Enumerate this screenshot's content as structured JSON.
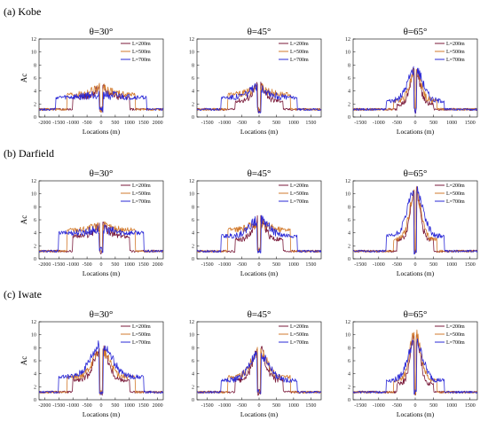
{
  "colors": {
    "L200": "#7a1a3a",
    "L500": "#d27a2c",
    "L700": "#2a28d6"
  },
  "sections": [
    {
      "label": "(a) Kobe"
    },
    {
      "label": "(b) Darfield"
    },
    {
      "label": "(c) Iwate"
    }
  ],
  "ylabel": "Ac",
  "xlabel": "Locations (m)",
  "chart_data": [
    {
      "type": "line",
      "section": "(a) Kobe",
      "title": "θ=30°",
      "xlim": [
        -2200,
        2200
      ],
      "ylim": [
        0,
        12
      ],
      "xticks": [
        -2000,
        -1500,
        -1000,
        -500,
        0,
        500,
        1000,
        1500,
        2000
      ],
      "yticks": [
        0,
        2,
        4,
        6,
        8,
        10,
        12
      ],
      "series": [
        {
          "name": "L=200m",
          "width": 1000,
          "base": 3.0,
          "peak": 4.5
        },
        {
          "name": "L=500m",
          "width": 1200,
          "base": 3.5,
          "peak": 4.5
        },
        {
          "name": "L=700m",
          "width": 1600,
          "base": 3.0,
          "peak": 3.5
        }
      ]
    },
    {
      "type": "line",
      "section": "(a) Kobe",
      "title": "θ=45°",
      "xlim": [
        -1800,
        1800
      ],
      "ylim": [
        0,
        12
      ],
      "xticks": [
        -1500,
        -1000,
        -500,
        0,
        500,
        1000,
        1500
      ],
      "yticks": [
        0,
        2,
        4,
        6,
        8,
        10,
        12
      ],
      "series": [
        {
          "name": "L=200m",
          "width": 700,
          "base": 2.5,
          "peak": 5.0
        },
        {
          "name": "L=500m",
          "width": 900,
          "base": 3.5,
          "peak": 4.5
        },
        {
          "name": "L=700m",
          "width": 1100,
          "base": 3.0,
          "peak": 4.5
        }
      ]
    },
    {
      "type": "line",
      "section": "(a) Kobe",
      "title": "θ=65°",
      "xlim": [
        -1700,
        1700
      ],
      "ylim": [
        0,
        12
      ],
      "xticks": [
        -1500,
        -1000,
        -500,
        0,
        500,
        1000,
        1500
      ],
      "yticks": [
        0,
        2,
        4,
        6,
        8,
        10,
        12
      ],
      "series": [
        {
          "name": "L=200m",
          "width": 500,
          "base": 2.0,
          "peak": 7.5
        },
        {
          "name": "L=500m",
          "width": 600,
          "base": 2.5,
          "peak": 7.0
        },
        {
          "name": "L=700m",
          "width": 800,
          "base": 2.5,
          "peak": 7.5
        }
      ]
    },
    {
      "type": "line",
      "section": "(b) Darfield",
      "title": "θ=30°",
      "xlim": [
        -2200,
        2200
      ],
      "ylim": [
        0,
        12
      ],
      "xticks": [
        -2000,
        -1500,
        -1000,
        -500,
        0,
        500,
        1000,
        1500,
        2000
      ],
      "yticks": [
        0,
        2,
        4,
        6,
        8,
        10,
        12
      ],
      "series": [
        {
          "name": "L=200m",
          "width": 1000,
          "base": 3.5,
          "peak": 5.0
        },
        {
          "name": "L=500m",
          "width": 1200,
          "base": 4.5,
          "peak": 5.0
        },
        {
          "name": "L=700m",
          "width": 1500,
          "base": 4.0,
          "peak": 4.5
        }
      ]
    },
    {
      "type": "line",
      "section": "(b) Darfield",
      "title": "θ=45°",
      "xlim": [
        -1800,
        1800
      ],
      "ylim": [
        0,
        12
      ],
      "xticks": [
        -1500,
        -1000,
        -500,
        0,
        500,
        1000,
        1500
      ],
      "yticks": [
        0,
        2,
        4,
        6,
        8,
        10,
        12
      ],
      "series": [
        {
          "name": "L=200m",
          "width": 700,
          "base": 3.0,
          "peak": 6.0
        },
        {
          "name": "L=500m",
          "width": 900,
          "base": 4.5,
          "peak": 5.5
        },
        {
          "name": "L=700m",
          "width": 1100,
          "base": 3.5,
          "peak": 6.0
        }
      ]
    },
    {
      "type": "line",
      "section": "(b) Darfield",
      "title": "θ=65°",
      "xlim": [
        -1700,
        1700
      ],
      "ylim": [
        0,
        12
      ],
      "xticks": [
        -1500,
        -1000,
        -500,
        0,
        500,
        1000,
        1500
      ],
      "yticks": [
        0,
        2,
        4,
        6,
        8,
        10,
        12
      ],
      "series": [
        {
          "name": "L=200m",
          "width": 500,
          "base": 3.0,
          "peak": 11.0
        },
        {
          "name": "L=500m",
          "width": 600,
          "base": 3.0,
          "peak": 10.5
        },
        {
          "name": "L=700m",
          "width": 800,
          "base": 3.5,
          "peak": 11.0
        }
      ]
    },
    {
      "type": "line",
      "section": "(c) Iwate",
      "title": "θ=30°",
      "xlim": [
        -2200,
        2200
      ],
      "ylim": [
        0,
        12
      ],
      "xticks": [
        -2000,
        -1500,
        -1000,
        -500,
        0,
        500,
        1000,
        1500,
        2000
      ],
      "yticks": [
        0,
        2,
        4,
        6,
        8,
        10,
        12
      ],
      "series": [
        {
          "name": "L=200m",
          "width": 1000,
          "base": 3.0,
          "peak": 8.0
        },
        {
          "name": "L=500m",
          "width": 1200,
          "base": 3.5,
          "peak": 7.5
        },
        {
          "name": "L=700m",
          "width": 1500,
          "base": 3.5,
          "peak": 8.5
        }
      ]
    },
    {
      "type": "line",
      "section": "(c) Iwate",
      "title": "θ=45°",
      "xlim": [
        -1800,
        1800
      ],
      "ylim": [
        0,
        12
      ],
      "xticks": [
        -1500,
        -1000,
        -500,
        0,
        500,
        1000,
        1500
      ],
      "yticks": [
        0,
        2,
        4,
        6,
        8,
        10,
        12
      ],
      "series": [
        {
          "name": "L=200m",
          "width": 700,
          "base": 3.0,
          "peak": 8.0
        },
        {
          "name": "L=500m",
          "width": 900,
          "base": 3.5,
          "peak": 7.5
        },
        {
          "name": "L=700m",
          "width": 1100,
          "base": 3.0,
          "peak": 7.0
        }
      ]
    },
    {
      "type": "line",
      "section": "(c) Iwate",
      "title": "θ=65°",
      "xlim": [
        -1700,
        1700
      ],
      "ylim": [
        0,
        12
      ],
      "xticks": [
        -1500,
        -1000,
        -500,
        0,
        500,
        1000,
        1500
      ],
      "yticks": [
        0,
        2,
        4,
        6,
        8,
        10,
        12
      ],
      "series": [
        {
          "name": "L=200m",
          "width": 500,
          "base": 2.5,
          "peak": 10.5
        },
        {
          "name": "L=500m",
          "width": 600,
          "base": 3.0,
          "peak": 10.5
        },
        {
          "name": "L=700m",
          "width": 800,
          "base": 3.0,
          "peak": 9.0
        }
      ]
    }
  ]
}
